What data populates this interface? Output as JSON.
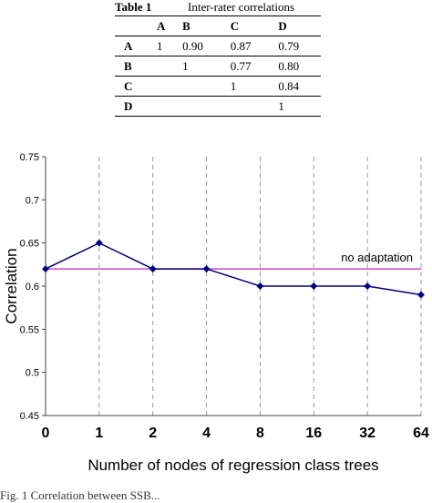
{
  "table": {
    "label": "Table 1",
    "title": "Inter-rater correlations",
    "columns": [
      "",
      "A",
      "B",
      "C",
      "D"
    ],
    "rows": [
      {
        "header": "A",
        "cells": [
          "1",
          "0.90",
          "0.87",
          "0.79"
        ]
      },
      {
        "header": "B",
        "cells": [
          "",
          "1",
          "0.77",
          "0.80"
        ]
      },
      {
        "header": "C",
        "cells": [
          "",
          "",
          "1",
          "0.84"
        ]
      },
      {
        "header": "D",
        "cells": [
          "",
          "",
          "",
          "1"
        ]
      }
    ]
  },
  "chart_data": {
    "type": "line",
    "title": "",
    "xlabel": "Number of nodes of regression class trees",
    "ylabel": "Correlation",
    "categories": [
      "0",
      "1",
      "2",
      "4",
      "8",
      "16",
      "32",
      "64"
    ],
    "ylim": [
      0.45,
      0.75
    ],
    "yticks": [
      "0.45",
      "0.5",
      "0.55",
      "0.6",
      "0.65",
      "0.7",
      "0.75"
    ],
    "series": [
      {
        "name": "",
        "color": "#000080",
        "marker": "diamond",
        "values": [
          0.62,
          0.65,
          0.62,
          0.62,
          0.6,
          0.6,
          0.6,
          0.59
        ]
      }
    ],
    "reference_line": {
      "label": "no adaptation",
      "value": 0.62,
      "color": "#cc44cc"
    },
    "grid": "vertical-dashed"
  },
  "figure_caption": "Fig. 1 Correlation between SSB..."
}
